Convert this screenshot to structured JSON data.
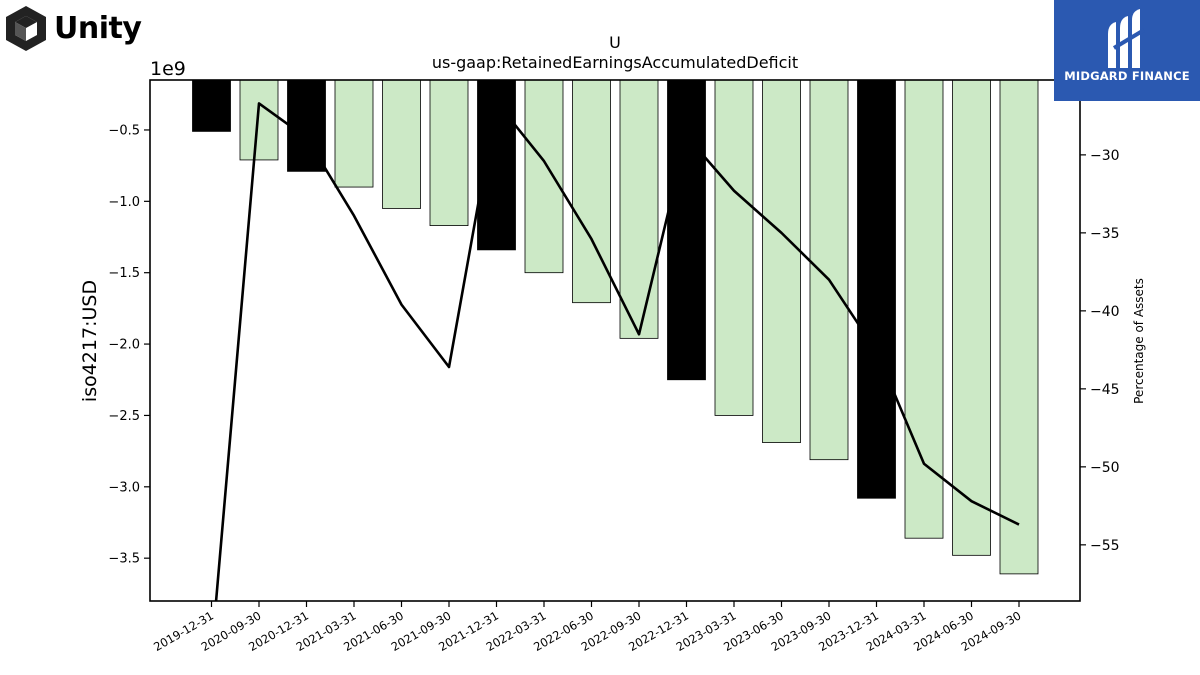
{
  "logos": {
    "unity": {
      "label": "Unity"
    },
    "midgard": {
      "label": "MIDGARD FINANCE",
      "color": "#2b59b1"
    }
  },
  "chart_data": {
    "type": "bar",
    "title": "U",
    "subtitle": "us-gaap:RetainedEarningsAccumulatedDeficit",
    "ylabel": "iso4217:USD",
    "ylabel_right": "Percentage of Assets",
    "y_offset_label": "1e9",
    "ylim": [
      -3.8,
      -0.15
    ],
    "ylim_right": [
      -58.6,
      -25.2
    ],
    "yticks": [
      -0.5,
      -1.0,
      -1.5,
      -2.0,
      -2.5,
      -3.0,
      -3.5
    ],
    "yticklabels": [
      "−0.5",
      "−1.0",
      "−1.5",
      "−2.0",
      "−2.5",
      "−3.0",
      "−3.5"
    ],
    "yticks_right": [
      -30,
      -35,
      -40,
      -45,
      -50,
      -55
    ],
    "yticklabels_right": [
      "−30",
      "−35",
      "−40",
      "−45",
      "−50",
      "−55"
    ],
    "grid": false,
    "categories": [
      "2019-12-31",
      "2020-09-30",
      "2020-12-31",
      "2021-03-31",
      "2021-06-30",
      "2021-09-30",
      "2021-12-31",
      "2022-03-31",
      "2022-06-30",
      "2022-09-30",
      "2022-12-31",
      "2023-03-31",
      "2023-06-30",
      "2023-09-30",
      "2023-12-31",
      "2024-03-31",
      "2024-06-30",
      "2024-09-30"
    ],
    "series": [
      {
        "type": "bar",
        "unit": "1e9 USD",
        "values": [
          -0.51,
          -0.71,
          -0.79,
          -0.9,
          -1.05,
          -1.17,
          -1.34,
          -1.5,
          -1.71,
          -1.96,
          -2.25,
          -2.5,
          -2.69,
          -2.81,
          -3.08,
          -3.36,
          -3.48,
          -3.61
        ],
        "colors": [
          "#000000",
          "#cce9c6",
          "#000000",
          "#cce9c6",
          "#cce9c6",
          "#cce9c6",
          "#000000",
          "#cce9c6",
          "#cce9c6",
          "#cce9c6",
          "#000000",
          "#cce9c6",
          "#cce9c6",
          "#cce9c6",
          "#000000",
          "#cce9c6",
          "#cce9c6",
          "#cce9c6"
        ]
      },
      {
        "type": "line",
        "axis": "right",
        "color": "#000000",
        "values": [
          -62.0,
          -26.7,
          -28.9,
          -33.9,
          -39.6,
          -43.6,
          -26.6,
          -30.4,
          -35.4,
          -41.5,
          -28.8,
          -32.3,
          -35.0,
          -38.0,
          -42.6,
          -49.8,
          -52.2,
          -53.7
        ]
      }
    ]
  }
}
